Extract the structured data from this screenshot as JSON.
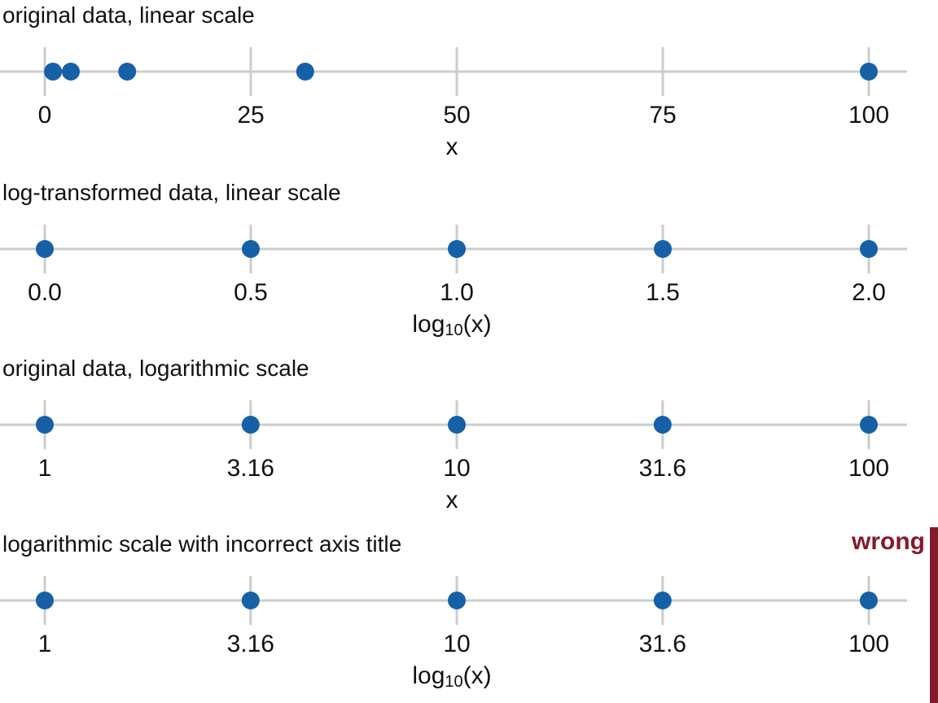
{
  "colors": {
    "point_blue": "#1660a8",
    "axis_gray": "#cccccc",
    "text_black": "#111111",
    "wrong_red": "#851a2b"
  },
  "chart_data": {
    "type": "scatter",
    "subtype": "one-dimensional strip plots of the same five data values shown with different axis scalings",
    "legend": "none",
    "grid": "off",
    "panels": [
      {
        "title": "original data, linear scale",
        "scale": "linear",
        "domain": [
          0,
          100
        ],
        "ticks": [
          0,
          25,
          50,
          75,
          100
        ],
        "tick_labels": [
          "0",
          "25",
          "50",
          "75",
          "100"
        ],
        "points": [
          1,
          3.16,
          10,
          31.6,
          100
        ],
        "xlabel": "x",
        "xlabel_parts": null
      },
      {
        "title": "log-transformed data, linear scale",
        "scale": "linear",
        "domain": [
          0,
          2
        ],
        "ticks": [
          0,
          0.5,
          1,
          1.5,
          2
        ],
        "tick_labels": [
          "0.0",
          "0.5",
          "1.0",
          "1.5",
          "2.0"
        ],
        "points": [
          0,
          0.5,
          1,
          1.5,
          2
        ],
        "xlabel": "log10(x)",
        "xlabel_parts": {
          "pre": "log",
          "sub": "10",
          "post": "(x)"
        }
      },
      {
        "title": "original data, logarithmic scale",
        "scale": "log10",
        "domain": [
          1,
          100
        ],
        "ticks": [
          1,
          3.16,
          10,
          31.6,
          100
        ],
        "tick_labels": [
          "1",
          "3.16",
          "10",
          "31.6",
          "100"
        ],
        "points": [
          1,
          3.16,
          10,
          31.6,
          100
        ],
        "xlabel": "x",
        "xlabel_parts": null
      },
      {
        "title": "logarithmic scale with incorrect axis title",
        "scale": "log10",
        "domain": [
          1,
          100
        ],
        "ticks": [
          1,
          3.16,
          10,
          31.6,
          100
        ],
        "tick_labels": [
          "1",
          "3.16",
          "10",
          "31.6",
          "100"
        ],
        "points": [
          1,
          3.16,
          10,
          31.6,
          100
        ],
        "xlabel": "log10(x)",
        "xlabel_parts": {
          "pre": "log",
          "sub": "10",
          "post": "(x)"
        },
        "annotation": "wrong"
      }
    ]
  }
}
